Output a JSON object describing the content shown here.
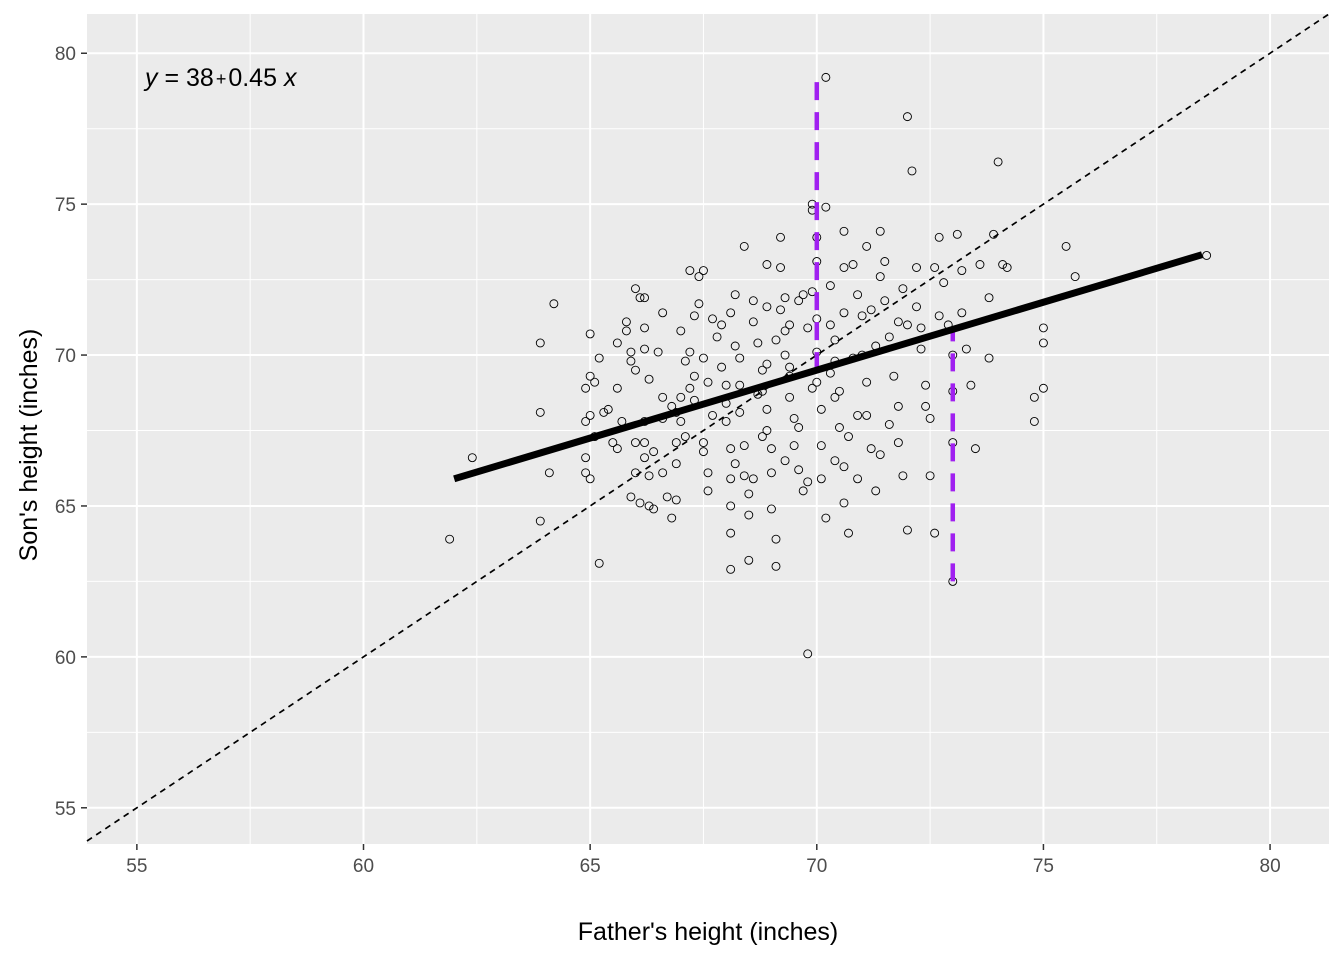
{
  "chart_data": {
    "type": "scatter",
    "xlabel": "Father's height (inches)",
    "ylabel": "Son's height (inches)",
    "xlim": [
      53.9,
      81.3
    ],
    "ylim": [
      53.8,
      81.3
    ],
    "x_ticks": [
      55,
      60,
      65,
      70,
      75,
      80
    ],
    "y_ticks": [
      55,
      60,
      65,
      70,
      75,
      80
    ],
    "x_tick_labels": [
      "55",
      "60",
      "65",
      "70",
      "75",
      "80"
    ],
    "y_tick_labels": [
      "55",
      "60",
      "65",
      "70",
      "75",
      "80"
    ],
    "grid": true,
    "background": "#ebebeb",
    "annotation": {
      "text": "y = 38 + 0.45 x",
      "y_var": "y",
      "intercept": "38",
      "plus": "+",
      "slope": "0.45",
      "x_var": "x",
      "x": 55,
      "y": 79
    },
    "regression_line": {
      "intercept": 38.0,
      "slope": 0.45,
      "x_range": [
        62.0,
        78.5
      ],
      "color": "#000000"
    },
    "identity_line": {
      "slope": 1,
      "intercept": 0,
      "style": "dashed",
      "color": "#000000"
    },
    "vertical_segments": [
      {
        "x": 70.0,
        "y_start": 69.5,
        "y_end": 79.2,
        "color": "#a020f0"
      },
      {
        "x": 73.0,
        "y_start": 62.5,
        "y_end": 70.9,
        "color": "#a020f0"
      }
    ],
    "points": [
      [
        61.9,
        63.9
      ],
      [
        62.4,
        66.6
      ],
      [
        63.9,
        70.4
      ],
      [
        63.9,
        68.1
      ],
      [
        63.9,
        64.5
      ],
      [
        64.1,
        66.1
      ],
      [
        64.2,
        71.7
      ],
      [
        64.9,
        68.9
      ],
      [
        64.9,
        67.8
      ],
      [
        64.9,
        66.6
      ],
      [
        64.9,
        66.1
      ],
      [
        65.0,
        70.7
      ],
      [
        65.0,
        69.3
      ],
      [
        65.0,
        65.9
      ],
      [
        65.1,
        69.1
      ],
      [
        65.2,
        69.9
      ],
      [
        65.2,
        63.1
      ],
      [
        65.3,
        68.1
      ],
      [
        65.5,
        67.1
      ],
      [
        65.6,
        66.9
      ],
      [
        65.7,
        67.8
      ],
      [
        65.6,
        68.9
      ],
      [
        65.8,
        70.8
      ],
      [
        65.8,
        71.1
      ],
      [
        65.9,
        70.1
      ],
      [
        65.9,
        65.3
      ],
      [
        66.0,
        69.5
      ],
      [
        66.0,
        67.1
      ],
      [
        66.0,
        66.1
      ],
      [
        66.1,
        65.1
      ],
      [
        66.1,
        71.9
      ],
      [
        66.0,
        72.2
      ],
      [
        66.2,
        70.9
      ],
      [
        66.2,
        70.2
      ],
      [
        66.2,
        67.8
      ],
      [
        66.2,
        67.1
      ],
      [
        66.2,
        66.6
      ],
      [
        66.3,
        65.0
      ],
      [
        66.3,
        66.0
      ],
      [
        66.4,
        64.9
      ],
      [
        66.5,
        70.1
      ],
      [
        66.6,
        66.1
      ],
      [
        66.6,
        67.9
      ],
      [
        66.7,
        65.3
      ],
      [
        66.8,
        68.3
      ],
      [
        66.8,
        64.6
      ],
      [
        66.9,
        67.1
      ],
      [
        66.9,
        66.4
      ],
      [
        66.9,
        65.2
      ],
      [
        67.0,
        68.6
      ],
      [
        67.0,
        67.8
      ],
      [
        67.1,
        69.8
      ],
      [
        67.2,
        68.9
      ],
      [
        67.2,
        70.1
      ],
      [
        67.3,
        69.3
      ],
      [
        67.3,
        71.3
      ],
      [
        67.4,
        71.7
      ],
      [
        67.4,
        72.6
      ],
      [
        67.5,
        72.8
      ],
      [
        67.5,
        69.9
      ],
      [
        67.5,
        67.1
      ],
      [
        67.5,
        66.8
      ],
      [
        67.6,
        66.1
      ],
      [
        67.6,
        65.5
      ],
      [
        67.7,
        68.0
      ],
      [
        67.8,
        70.6
      ],
      [
        67.9,
        71.0
      ],
      [
        68.0,
        69.0
      ],
      [
        68.0,
        68.4
      ],
      [
        68.0,
        67.8
      ],
      [
        68.1,
        66.9
      ],
      [
        68.1,
        65.9
      ],
      [
        68.1,
        65.0
      ],
      [
        68.1,
        64.1
      ],
      [
        68.1,
        62.9
      ],
      [
        68.2,
        72.0
      ],
      [
        68.2,
        70.3
      ],
      [
        68.3,
        69.9
      ],
      [
        68.3,
        68.1
      ],
      [
        68.4,
        67.0
      ],
      [
        68.4,
        66.0
      ],
      [
        68.5,
        65.4
      ],
      [
        68.5,
        64.7
      ],
      [
        68.5,
        63.2
      ],
      [
        68.6,
        71.8
      ],
      [
        68.6,
        71.1
      ],
      [
        68.7,
        70.4
      ],
      [
        68.8,
        69.5
      ],
      [
        68.8,
        68.8
      ],
      [
        68.9,
        68.2
      ],
      [
        68.9,
        67.5
      ],
      [
        69.0,
        66.9
      ],
      [
        69.0,
        66.1
      ],
      [
        69.0,
        64.9
      ],
      [
        69.1,
        63.9
      ],
      [
        69.1,
        63.0
      ],
      [
        69.2,
        72.9
      ],
      [
        69.2,
        71.5
      ],
      [
        69.3,
        70.8
      ],
      [
        69.3,
        70.0
      ],
      [
        69.4,
        69.3
      ],
      [
        69.4,
        68.6
      ],
      [
        69.5,
        67.9
      ],
      [
        69.5,
        67.0
      ],
      [
        69.6,
        66.2
      ],
      [
        69.7,
        65.5
      ],
      [
        69.8,
        60.1
      ],
      [
        69.9,
        75.0
      ],
      [
        69.9,
        74.8
      ],
      [
        70.0,
        73.9
      ],
      [
        70.0,
        73.1
      ],
      [
        69.9,
        72.1
      ],
      [
        70.0,
        71.2
      ],
      [
        70.0,
        70.1
      ],
      [
        70.0,
        69.1
      ],
      [
        70.1,
        68.2
      ],
      [
        70.1,
        67.0
      ],
      [
        70.1,
        65.9
      ],
      [
        70.2,
        64.6
      ],
      [
        70.2,
        79.2
      ],
      [
        70.2,
        74.9
      ],
      [
        70.3,
        72.3
      ],
      [
        70.3,
        71.0
      ],
      [
        70.4,
        70.5
      ],
      [
        70.4,
        69.8
      ],
      [
        70.5,
        68.8
      ],
      [
        70.5,
        67.6
      ],
      [
        70.6,
        66.3
      ],
      [
        70.6,
        65.1
      ],
      [
        70.7,
        64.1
      ],
      [
        70.8,
        73.0
      ],
      [
        70.9,
        72.0
      ],
      [
        71.0,
        71.3
      ],
      [
        71.0,
        70.0
      ],
      [
        71.1,
        69.1
      ],
      [
        71.1,
        68.0
      ],
      [
        71.2,
        66.9
      ],
      [
        71.3,
        65.5
      ],
      [
        71.4,
        74.1
      ],
      [
        71.5,
        73.1
      ],
      [
        71.5,
        71.8
      ],
      [
        71.6,
        70.6
      ],
      [
        71.7,
        69.3
      ],
      [
        71.8,
        68.3
      ],
      [
        71.8,
        67.1
      ],
      [
        71.9,
        66.0
      ],
      [
        72.0,
        64.2
      ],
      [
        72.0,
        77.9
      ],
      [
        72.1,
        76.1
      ],
      [
        72.2,
        72.9
      ],
      [
        72.2,
        71.6
      ],
      [
        72.3,
        70.2
      ],
      [
        72.4,
        69.0
      ],
      [
        72.5,
        67.9
      ],
      [
        72.5,
        66.0
      ],
      [
        72.6,
        64.1
      ],
      [
        72.7,
        73.9
      ],
      [
        72.8,
        72.4
      ],
      [
        72.9,
        71.0
      ],
      [
        73.0,
        70.0
      ],
      [
        73.0,
        68.8
      ],
      [
        73.0,
        67.1
      ],
      [
        73.0,
        62.5
      ],
      [
        73.1,
        74.0
      ],
      [
        73.2,
        72.8
      ],
      [
        73.2,
        71.4
      ],
      [
        73.3,
        70.2
      ],
      [
        73.4,
        69.0
      ],
      [
        73.5,
        66.9
      ],
      [
        73.6,
        73.0
      ],
      [
        73.8,
        71.9
      ],
      [
        73.8,
        69.9
      ],
      [
        73.9,
        74.0
      ],
      [
        74.0,
        76.4
      ],
      [
        74.1,
        73.0
      ],
      [
        74.2,
        72.9
      ],
      [
        74.8,
        68.6
      ],
      [
        74.8,
        67.8
      ],
      [
        75.0,
        70.4
      ],
      [
        75.0,
        70.9
      ],
      [
        75.0,
        68.9
      ],
      [
        75.5,
        73.6
      ],
      [
        75.7,
        72.6
      ],
      [
        78.6,
        73.3
      ],
      [
        69.1,
        70.5
      ],
      [
        69.3,
        71.9
      ],
      [
        69.8,
        70.9
      ],
      [
        70.3,
        69.4
      ],
      [
        70.8,
        69.9
      ],
      [
        71.3,
        70.3
      ],
      [
        71.8,
        71.1
      ],
      [
        72.3,
        70.9
      ],
      [
        68.9,
        69.7
      ],
      [
        69.4,
        69.6
      ],
      [
        69.9,
        68.9
      ],
      [
        70.4,
        68.6
      ],
      [
        70.9,
        68.0
      ],
      [
        68.7,
        68.7
      ],
      [
        68.3,
        69.0
      ],
      [
        67.9,
        69.6
      ],
      [
        67.6,
        69.1
      ],
      [
        67.3,
        68.5
      ],
      [
        66.9,
        68.1
      ],
      [
        66.6,
        68.6
      ],
      [
        66.3,
        69.2
      ],
      [
        65.9,
        69.8
      ],
      [
        65.6,
        70.4
      ],
      [
        65.4,
        68.2
      ],
      [
        65.1,
        67.3
      ],
      [
        65.0,
        68.0
      ],
      [
        66.4,
        66.8
      ],
      [
        67.1,
        67.3
      ],
      [
        68.8,
        67.3
      ],
      [
        69.6,
        67.6
      ],
      [
        70.7,
        67.3
      ],
      [
        71.6,
        67.7
      ],
      [
        72.4,
        68.3
      ],
      [
        68.2,
        66.4
      ],
      [
        69.3,
        66.5
      ],
      [
        70.4,
        66.5
      ],
      [
        71.4,
        66.7
      ],
      [
        68.6,
        65.9
      ],
      [
        69.8,
        65.8
      ],
      [
        70.9,
        65.9
      ],
      [
        69.2,
        73.9
      ],
      [
        68.9,
        73.0
      ],
      [
        68.4,
        73.6
      ],
      [
        70.6,
        74.1
      ],
      [
        71.1,
        73.6
      ],
      [
        70.6,
        72.9
      ],
      [
        71.4,
        72.6
      ],
      [
        71.9,
        72.2
      ],
      [
        72.6,
        72.9
      ],
      [
        68.1,
        71.4
      ],
      [
        67.7,
        71.2
      ],
      [
        67.0,
        70.8
      ],
      [
        66.6,
        71.4
      ],
      [
        69.6,
        71.8
      ],
      [
        69.7,
        72.0
      ],
      [
        68.9,
        71.6
      ],
      [
        69.4,
        71.0
      ],
      [
        70.6,
        71.4
      ],
      [
        71.2,
        71.5
      ],
      [
        72.0,
        71.0
      ],
      [
        72.7,
        71.3
      ],
      [
        66.2,
        71.9
      ],
      [
        67.2,
        72.8
      ]
    ]
  }
}
